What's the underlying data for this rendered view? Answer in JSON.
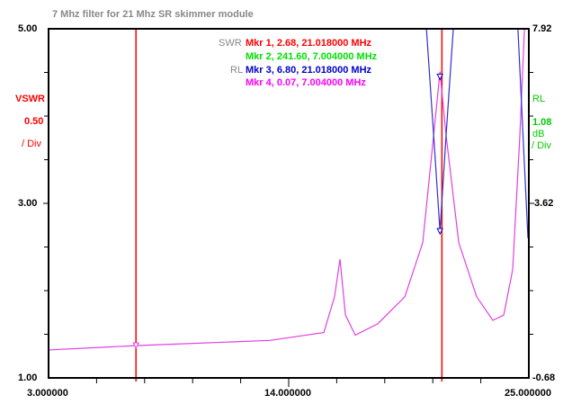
{
  "chart_data": {
    "type": "line",
    "title": "7 Mhz filter for 21 Mhz SR skimmer module",
    "x_range": [
      3.0,
      25.0
    ],
    "x_tick_labels": [
      "3.000000",
      "14.000000",
      "25.000000"
    ],
    "left_axis": {
      "range": [
        1.0,
        5.0
      ],
      "tick_labels": [
        "5.00",
        "3.00",
        "1.00"
      ],
      "label": "VSWR",
      "scale": "0.50",
      "per_div": "/ Div",
      "color": "#ff0000"
    },
    "right_axis": {
      "range": [
        -0.68,
        7.92
      ],
      "tick_labels": [
        "7.92",
        "3.62",
        "-0.68"
      ],
      "label": "RL",
      "scale": "1.08",
      "unit": "dB",
      "per_div": "/ Div",
      "color": "#00cc00"
    },
    "grid": false,
    "marker_lines_mhz": [
      7.004,
      21.018
    ],
    "legend": {
      "swr_label": "SWR",
      "rl_label": "RL",
      "entries": [
        {
          "text": "Mkr 1, 2.68, 21.018000 MHz",
          "color": "#ff0000"
        },
        {
          "text": "Mkr 2, 241.60, 7.004000 MHz",
          "color": "#00e000"
        },
        {
          "text": "Mkr 3, 6.80, 21.018000 MHz",
          "color": "#0000cc"
        },
        {
          "text": "Mkr 4, 0.07, 7.004000 MHz",
          "color": "#ff00ff"
        }
      ]
    },
    "series": [
      {
        "name": "magenta",
        "color": "#e040e0",
        "x": [
          3.0,
          7.0,
          13.14,
          15.61,
          16.1,
          16.35,
          16.6,
          17.05,
          18.08,
          19.32,
          20.14,
          20.64,
          20.93,
          21.21,
          21.79,
          22.61,
          23.35,
          23.85,
          24.26,
          24.59,
          24.8
        ],
        "y": [
          1.32,
          1.37,
          1.43,
          1.52,
          1.93,
          2.36,
          1.72,
          1.49,
          1.62,
          1.93,
          2.55,
          3.78,
          4.51,
          3.78,
          2.55,
          1.93,
          1.66,
          1.72,
          2.24,
          3.78,
          5.0
        ]
      },
      {
        "name": "blue-a",
        "color": "#3030d0",
        "x": [
          20.31,
          20.64,
          20.93,
          21.21,
          21.54
        ],
        "y": [
          5.0,
          3.78,
          2.68,
          3.78,
          5.0
        ]
      },
      {
        "name": "blue-b",
        "color": "#3030d0",
        "x": [
          24.5,
          24.96
        ],
        "y": [
          5.0,
          2.6
        ]
      }
    ],
    "markers": [
      {
        "x": 7.004,
        "y": 1.37,
        "color": "#e040e0"
      },
      {
        "x": 20.93,
        "y": 4.45,
        "color": "#0000cc"
      },
      {
        "x": 20.93,
        "y": 2.68,
        "color": "#0000cc"
      }
    ]
  }
}
